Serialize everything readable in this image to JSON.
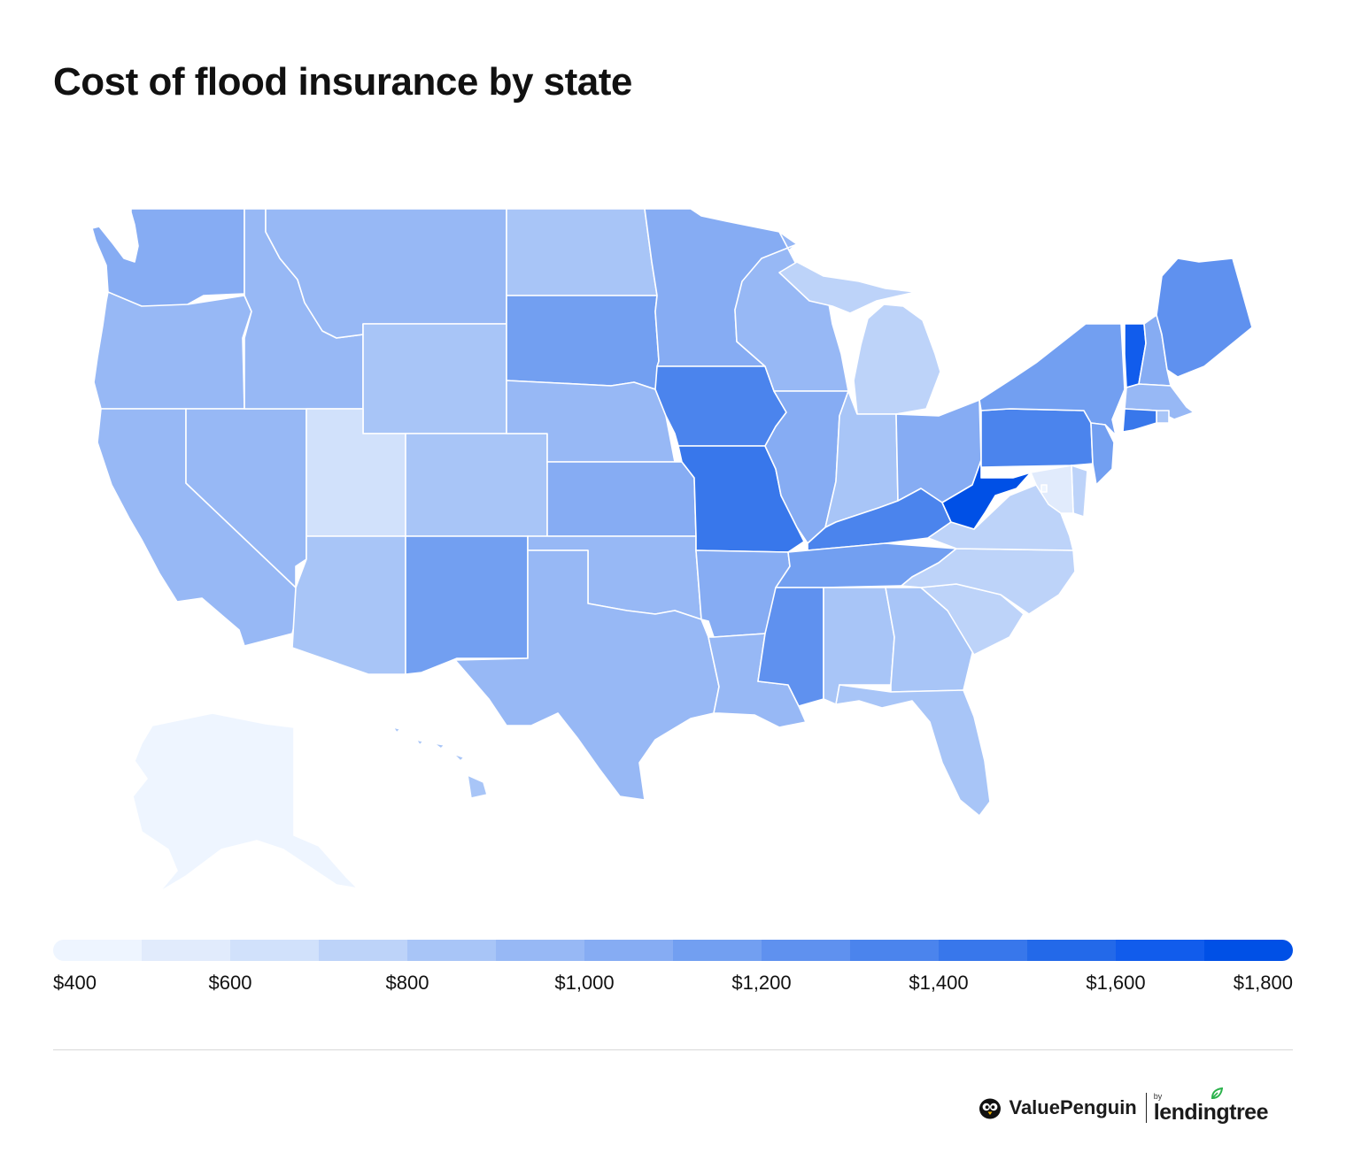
{
  "title": "Cost of flood insurance by state",
  "legend": {
    "colors": [
      "#eef5ff",
      "#e1ebfc",
      "#d1e1fb",
      "#bdd3f9",
      "#a8c5f7",
      "#97b8f5",
      "#86acf3",
      "#729ff1",
      "#5f91ef",
      "#4b84ed",
      "#3877eb",
      "#2369e9",
      "#115cec",
      "#0050e6"
    ],
    "ticks": [
      {
        "label": "$400",
        "value": 400
      },
      {
        "label": "$600",
        "value": 600
      },
      {
        "label": "$800",
        "value": 800
      },
      {
        "label": "$1,000",
        "value": 1000
      },
      {
        "label": "$1,200",
        "value": 1200
      },
      {
        "label": "$1,400",
        "value": 1400
      },
      {
        "label": "$1,600",
        "value": 1600
      },
      {
        "label": "$1,800",
        "value": 1800
      }
    ],
    "min": 400,
    "max": 1800
  },
  "chart_data": {
    "type": "choropleth",
    "title": "Cost of flood insurance by state",
    "range": [
      400,
      1800
    ],
    "values": {
      "WA": 1050,
      "OR": 950,
      "CA": 950,
      "NV": 900,
      "ID": 920,
      "MT": 900,
      "WY": 880,
      "UT": 660,
      "AZ": 830,
      "CO": 880,
      "NM": 1130,
      "ND": 820,
      "SD": 1140,
      "NE": 920,
      "KS": 1050,
      "OK": 980,
      "TX": 900,
      "MN": 1020,
      "IA": 1300,
      "MO": 1450,
      "AR": 1020,
      "LA": 910,
      "WI": 900,
      "IL": 1030,
      "MI": 780,
      "IN": 880,
      "OH": 1080,
      "KY": 1350,
      "TN": 1150,
      "MS": 1200,
      "AL": 860,
      "GA": 800,
      "FL": 880,
      "SC": 700,
      "NC": 790,
      "VA": 720,
      "WV": 1800,
      "PA": 1380,
      "NY": 1100,
      "VT": 1650,
      "NH": 1050,
      "ME": 1260,
      "MA": 950,
      "RI": 860,
      "CT": 1400,
      "NJ": 1120,
      "DE": 760,
      "MD": 520,
      "DC": 430,
      "AK": 440,
      "HI": 860
    }
  }
}
